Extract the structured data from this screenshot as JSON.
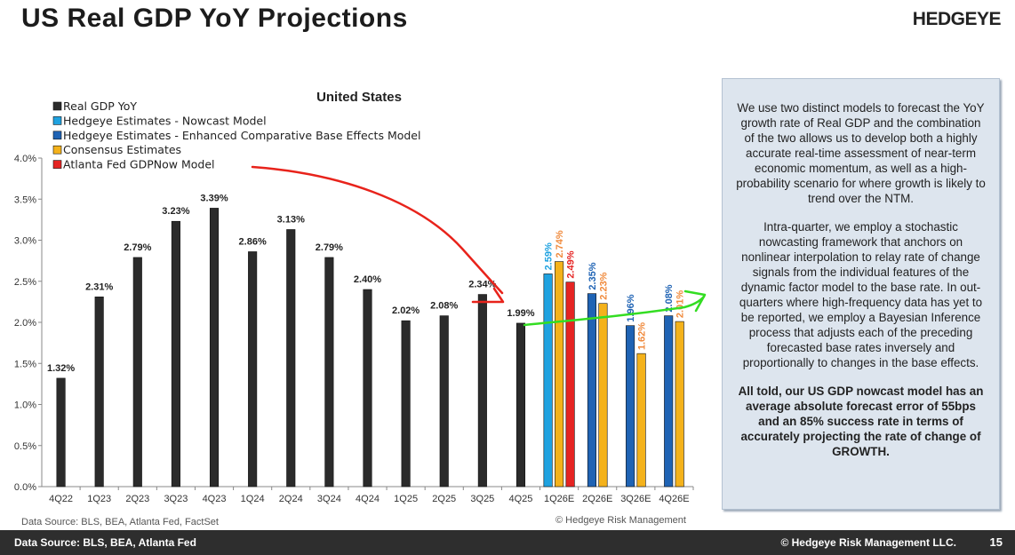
{
  "header": {
    "title": "US Real GDP YoY Projections",
    "brand": "HEDGEYE"
  },
  "chart_data": {
    "type": "bar",
    "title": "United States",
    "y_ticks": [
      "0.0%",
      "0.5%",
      "1.0%",
      "1.5%",
      "2.0%",
      "2.5%",
      "3.0%",
      "3.5%",
      "4.0%"
    ],
    "ylim": [
      0,
      4.0
    ],
    "grid": false,
    "legend_position": "top-left",
    "series": [
      {
        "name": "Real GDP YoY",
        "color": "#2b2b2b"
      },
      {
        "name": "Hedgeye Estimates - Nowcast Model",
        "color": "#1fa2e0"
      },
      {
        "name": "Hedgeye Estimates - Enhanced Comparative Base Effects Model",
        "color": "#1f63b4"
      },
      {
        "name": "Consensus Estimates",
        "color": "#f4b21b"
      },
      {
        "name": "Atlanta Fed GDPNow Model",
        "color": "#e52423"
      }
    ],
    "categories": [
      "4Q22",
      "1Q23",
      "2Q23",
      "3Q23",
      "4Q23",
      "1Q24",
      "2Q24",
      "3Q24",
      "4Q24",
      "1Q25",
      "2Q25",
      "3Q25",
      "4Q25",
      "1Q26E",
      "2Q26E",
      "3Q26E",
      "4Q26E"
    ],
    "bars": [
      {
        "category": "4Q22",
        "series": "Real GDP YoY",
        "value": 1.32,
        "label": "1.32%"
      },
      {
        "category": "1Q23",
        "series": "Real GDP YoY",
        "value": 2.31,
        "label": "2.31%"
      },
      {
        "category": "2Q23",
        "series": "Real GDP YoY",
        "value": 2.79,
        "label": "2.79%"
      },
      {
        "category": "3Q23",
        "series": "Real GDP YoY",
        "value": 3.23,
        "label": "3.23%"
      },
      {
        "category": "4Q23",
        "series": "Real GDP YoY",
        "value": 3.39,
        "label": "3.39%"
      },
      {
        "category": "1Q24",
        "series": "Real GDP YoY",
        "value": 2.86,
        "label": "2.86%"
      },
      {
        "category": "2Q24",
        "series": "Real GDP YoY",
        "value": 3.13,
        "label": "3.13%"
      },
      {
        "category": "3Q24",
        "series": "Real GDP YoY",
        "value": 2.79,
        "label": "2.79%"
      },
      {
        "category": "4Q24",
        "series": "Real GDP YoY",
        "value": 2.4,
        "label": "2.40%"
      },
      {
        "category": "1Q25",
        "series": "Real GDP YoY",
        "value": 2.02,
        "label": "2.02%"
      },
      {
        "category": "2Q25",
        "series": "Real GDP YoY",
        "value": 2.08,
        "label": "2.08%"
      },
      {
        "category": "3Q25",
        "series": "Real GDP YoY",
        "value": 2.34,
        "label": "2.34%"
      },
      {
        "category": "4Q25",
        "series": "Real GDP YoY",
        "value": 1.99,
        "label": "1.99%"
      },
      {
        "category": "1Q26E",
        "series": "Hedgeye Estimates - Nowcast Model",
        "value": 2.59,
        "label": "2.59%"
      },
      {
        "category": "1Q26E",
        "series": "Consensus Estimates",
        "value": 2.74,
        "label": "2.74%"
      },
      {
        "category": "1Q26E",
        "series": "Atlanta Fed GDPNow Model",
        "value": 2.49,
        "label": "2.49%"
      },
      {
        "category": "2Q26E",
        "series": "Hedgeye Estimates - Enhanced Comparative Base Effects Model",
        "value": 2.35,
        "label": "2.35%"
      },
      {
        "category": "2Q26E",
        "series": "Consensus Estimates",
        "value": 2.23,
        "label": "2.23%"
      },
      {
        "category": "3Q26E",
        "series": "Hedgeye Estimates - Enhanced Comparative Base Effects Model",
        "value": 1.96,
        "label": "1.96%"
      },
      {
        "category": "3Q26E",
        "series": "Consensus Estimates",
        "value": 1.62,
        "label": "1.62%"
      },
      {
        "category": "4Q26E",
        "series": "Hedgeye Estimates - Enhanced Comparative Base Effects Model",
        "value": 2.08,
        "label": "2.08%"
      },
      {
        "category": "4Q26E",
        "series": "Consensus Estimates",
        "value": 2.01,
        "label": "2.01%"
      }
    ],
    "annotations": [
      {
        "type": "hand-drawn-arrow",
        "color": "#e8231b",
        "description_from": "legend",
        "to": "4Q25"
      },
      {
        "type": "hand-drawn-arrow",
        "color": "#33dd22",
        "from": "4Q25",
        "to": "4Q26E"
      }
    ]
  },
  "chart_source": "Data Source: BLS, BEA, Atlanta Fed, FactSet",
  "chart_copyright": "© Hedgeye Risk Management",
  "info_box": {
    "p1": "We use two distinct models to forecast the YoY growth rate of Real GDP and the combination of the two allows us to develop both a highly accurate real-time assessment of near-term economic momentum, as well as a high-probability scenario for where growth is likely to trend over the NTM.",
    "p2": "Intra-quarter, we employ a stochastic nowcasting framework that anchors on nonlinear interpolation to relay rate of change signals from the individual features of the dynamic factor model to the base rate. In out-quarters where high-frequency data has yet to be reported, we employ a Bayesian Inference process that adjusts each of the preceding forecasted base rates inversely and proportionally to changes in the base effects.",
    "p3": "All told, our US GDP nowcast model has an average absolute forecast error of 55bps and an 85% success rate in terms of accurately projecting the rate of change of GROWTH."
  },
  "footer": {
    "source": "Data Source: BLS, BEA, Atlanta Fed",
    "copyright": "© Hedgeye Risk Management LLC.",
    "page": "15"
  }
}
